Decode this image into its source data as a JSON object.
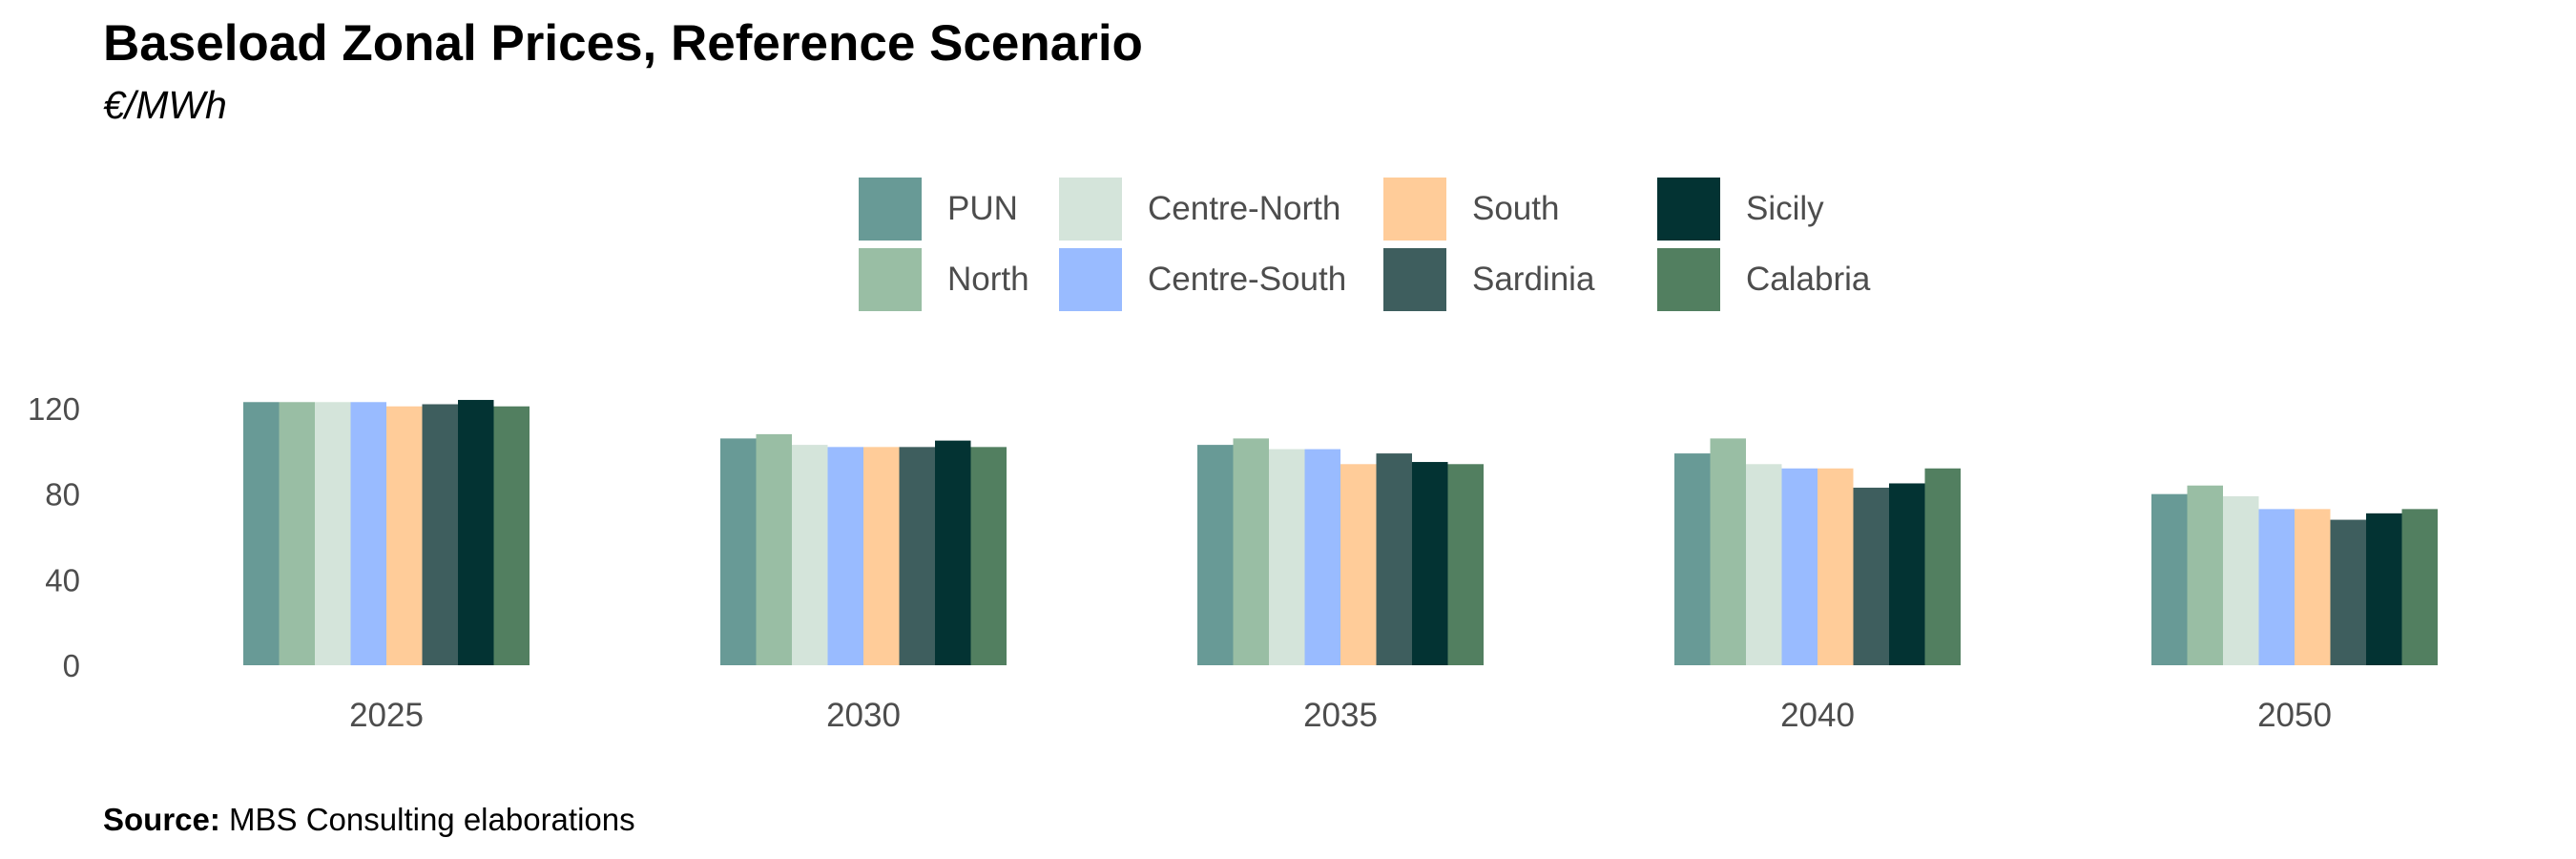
{
  "chart_data": {
    "type": "bar",
    "title": "Baseload Zonal Prices, Reference Scenario",
    "subtitle": "€/MWh",
    "xlabel": "",
    "ylabel": "",
    "ylim": [
      0,
      130
    ],
    "yticks": [
      0,
      40,
      80,
      120
    ],
    "grid": false,
    "legend_position": "top",
    "categories": [
      "2025",
      "2030",
      "2035",
      "2040",
      "2050"
    ],
    "series": [
      {
        "name": "PUN",
        "color": "#689A96",
        "values": [
          123,
          106,
          103,
          99,
          80
        ]
      },
      {
        "name": "North",
        "color": "#99BEA4",
        "values": [
          123,
          108,
          106,
          106,
          84
        ]
      },
      {
        "name": "Centre-North",
        "color": "#D4E4DA",
        "values": [
          123,
          103,
          101,
          94,
          79
        ]
      },
      {
        "name": "Centre-South",
        "color": "#99BBFF",
        "values": [
          123,
          102,
          101,
          92,
          73
        ]
      },
      {
        "name": "South",
        "color": "#FFCC99",
        "values": [
          121,
          102,
          94,
          92,
          73
        ]
      },
      {
        "name": "Sardinia",
        "color": "#3E5E5E",
        "values": [
          122,
          102,
          99,
          83,
          68
        ]
      },
      {
        "name": "Sicily",
        "color": "#033333",
        "values": [
          124,
          105,
          95,
          85,
          71
        ]
      },
      {
        "name": "Calabria",
        "color": "#527F60",
        "values": [
          121,
          102,
          94,
          92,
          73
        ]
      }
    ]
  },
  "source": {
    "label": "Source:",
    "text": " MBS Consulting elaborations"
  }
}
